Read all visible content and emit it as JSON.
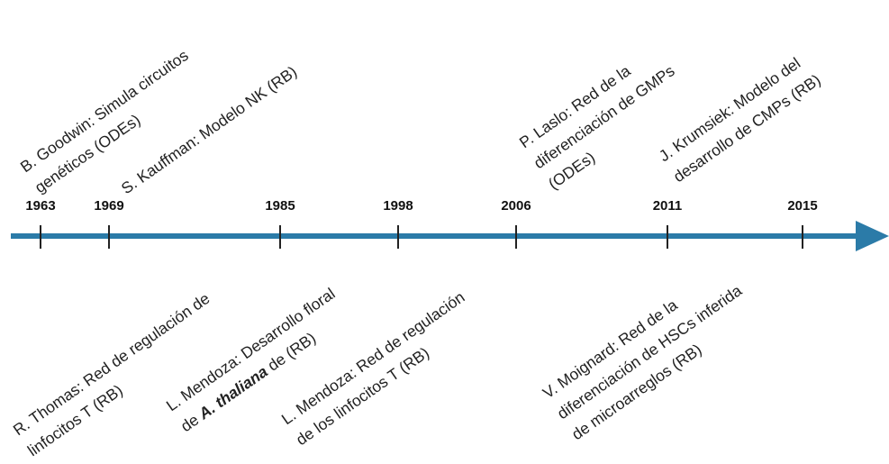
{
  "years": [
    "1963",
    "1969",
    "1985",
    "1998",
    "2006",
    "2011",
    "2015"
  ],
  "above": [
    {
      "lines": [
        "B. Goodwin: Simula circuitos",
        "genéticos (ODEs)"
      ]
    },
    {
      "lines": [
        "S. Kauffman: Modelo NK (RB)"
      ]
    },
    {
      "lines": [
        "P. Laslo: Red de la",
        "diferenciación de GMPs",
        "(ODEs)"
      ]
    },
    {
      "lines": [
        "J. Krumsiek: Modelo del",
        "desarrollo de CMPs (RB)"
      ]
    }
  ],
  "below": [
    {
      "lines": [
        "R. Thomas: Red de regulación de",
        "linfocitos T (RB)"
      ]
    },
    {
      "lines": [
        "L. Mendoza: Desarrollo floral",
        [
          {
            "text": "de "
          },
          {
            "text": "A. thaliana",
            "italic": true
          },
          {
            "text": " de (RB)"
          }
        ]
      ]
    },
    {
      "lines": [
        "L. Mendoza: Red de regulación",
        "de los linfocitos T (RB)"
      ]
    },
    {
      "lines": [
        "V. Moignard: Red de la",
        "diferenciación de HSCs inferida",
        "de microarreglos (RB)"
      ]
    }
  ]
}
